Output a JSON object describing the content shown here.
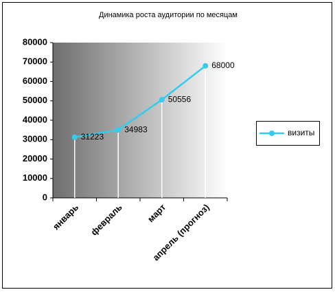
{
  "chart_data": {
    "type": "line",
    "title": "Динамика роста аудитории по месяцам",
    "categories": [
      "январь",
      "февраль",
      "март",
      "апрель (прогноз)"
    ],
    "series": [
      {
        "name": "визиты",
        "color": "#33ccee",
        "values": [
          31223,
          34983,
          50556,
          68000
        ]
      }
    ],
    "ylim": [
      0,
      80000
    ],
    "yticks": [
      0,
      10000,
      20000,
      30000,
      40000,
      50000,
      60000,
      70000,
      80000
    ],
    "drop_lines": true,
    "data_labels": true,
    "legend": "right"
  }
}
